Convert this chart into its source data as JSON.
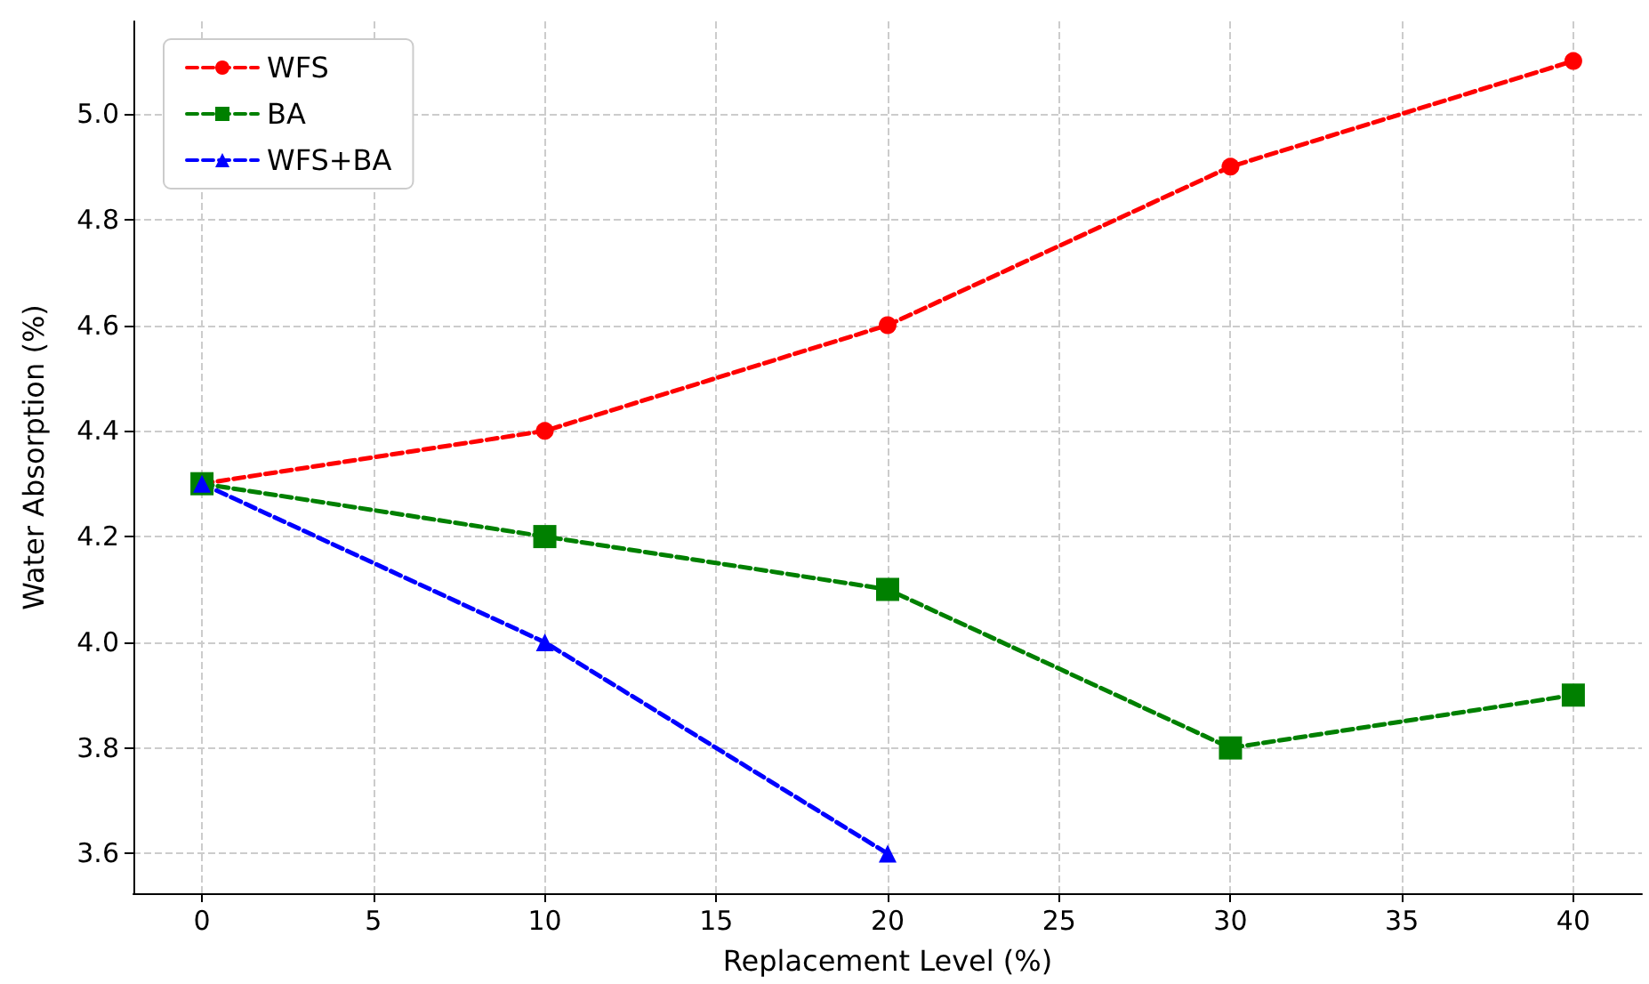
{
  "chart_data": {
    "type": "line",
    "xlabel": "Replacement Level (%)",
    "ylabel": "Water Absorption (%)",
    "series": [
      {
        "name": "WFS",
        "color": "#ff0000",
        "marker": "circle",
        "x": [
          0,
          10,
          20,
          30,
          40
        ],
        "values": [
          4.3,
          4.4,
          4.6,
          4.9,
          5.1
        ]
      },
      {
        "name": "BA",
        "color": "#008000",
        "marker": "square",
        "x": [
          0,
          10,
          20,
          30,
          40
        ],
        "values": [
          4.3,
          4.2,
          4.1,
          3.8,
          3.9
        ]
      },
      {
        "name": "WFS+BA",
        "color": "#0000ff",
        "marker": "triangle",
        "x": [
          0,
          10,
          20
        ],
        "values": [
          4.3,
          4.0,
          3.6
        ]
      }
    ],
    "xlim": [
      -2,
      42
    ],
    "xticks": [
      0,
      5,
      10,
      15,
      20,
      25,
      30,
      35,
      40
    ],
    "ylim": [
      3.525,
      5.175
    ],
    "yticks": [
      3.6,
      3.8,
      {
        "value": 4,
        "label": "4.0"
      },
      4.2,
      4.4,
      4.6,
      4.8,
      {
        "value": 5,
        "label": "5.0"
      }
    ],
    "grid": true,
    "legend": "top left",
    "line_style": "dashed"
  }
}
